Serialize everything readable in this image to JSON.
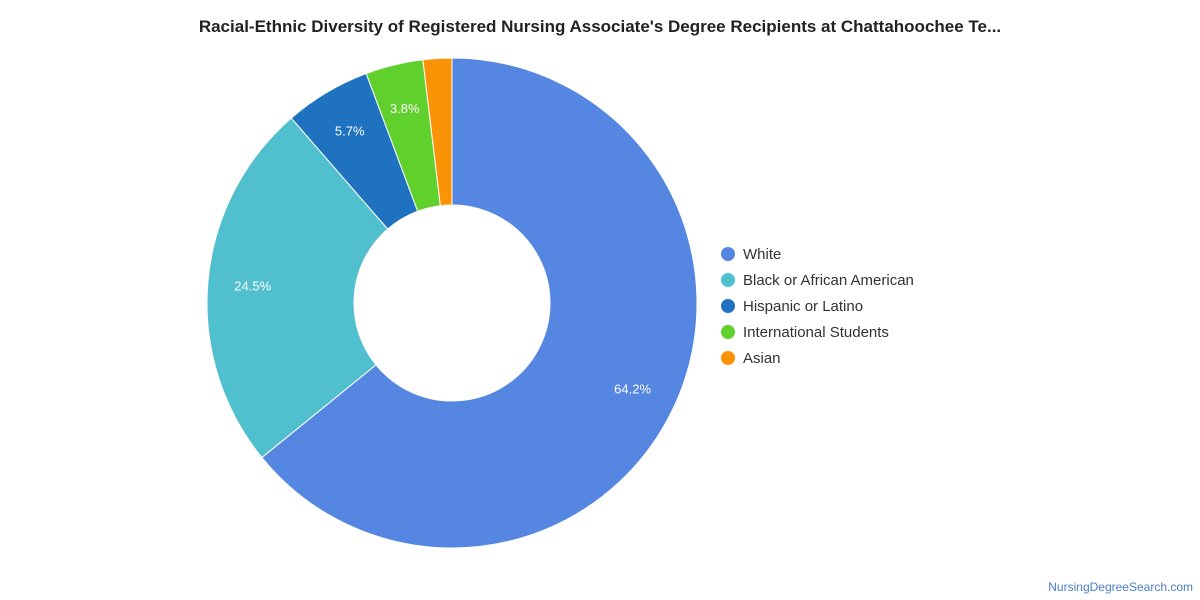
{
  "chart_data": {
    "type": "pie",
    "variant": "donut",
    "title": "Racial-Ethnic Diversity of Registered Nursing Associate's Degree Recipients at Chattahoochee Te...",
    "legend_position": "right",
    "series": [
      {
        "name": "White",
        "value": 64.2,
        "label": "64.2%",
        "color": "#5486e2"
      },
      {
        "name": "Black or African American",
        "value": 24.5,
        "label": "24.5%",
        "color": "#51c0ce"
      },
      {
        "name": "Hispanic or Latino",
        "value": 5.7,
        "label": "5.7%",
        "color": "#1f72c0"
      },
      {
        "name": "International Students",
        "value": 3.8,
        "label": "3.8%",
        "color": "#60d02c"
      },
      {
        "name": "Asian",
        "value": 1.9,
        "label": "",
        "color": "#fb9306"
      }
    ]
  },
  "footer": {
    "watermark": "NursingDegreeSearch.com"
  }
}
